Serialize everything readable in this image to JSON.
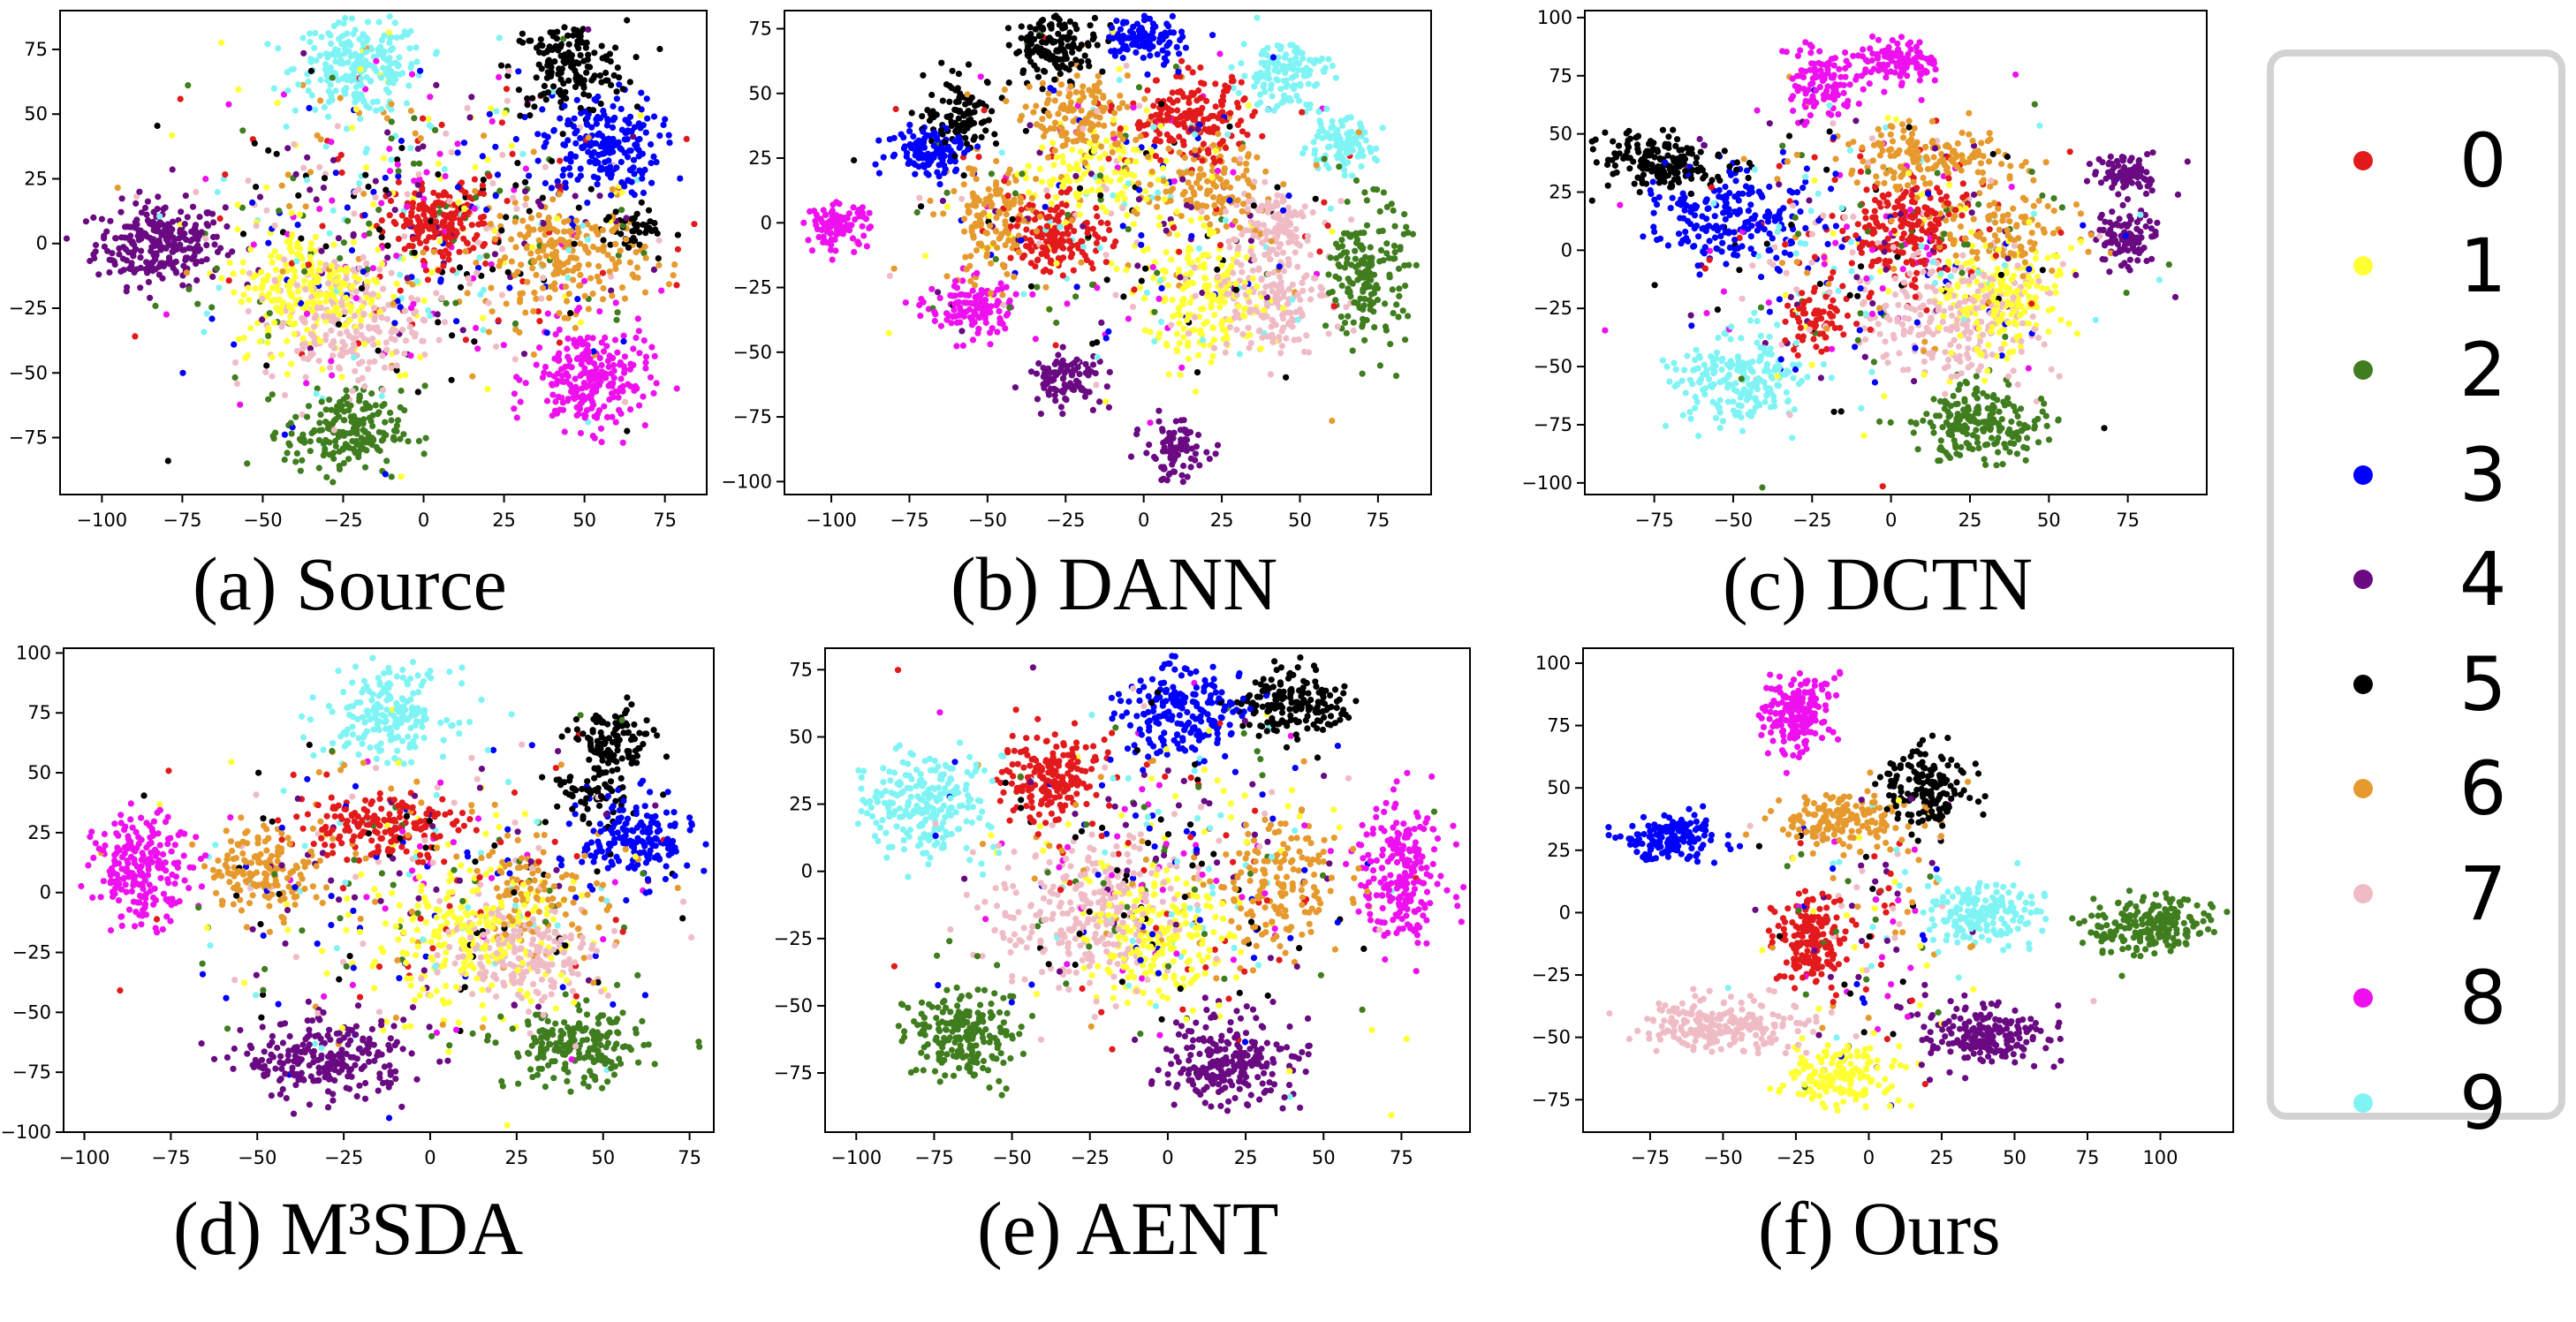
{
  "figure": {
    "legend_title": "",
    "legend": [
      {
        "label": "0",
        "color": "#e31a1c"
      },
      {
        "label": "1",
        "color": "#ffff33"
      },
      {
        "label": "2",
        "color": "#3f7d1f"
      },
      {
        "label": "3",
        "color": "#0000ff"
      },
      {
        "label": "4",
        "color": "#6a0a82"
      },
      {
        "label": "5",
        "color": "#000000"
      },
      {
        "label": "6",
        "color": "#e69a2e"
      },
      {
        "label": "7",
        "color": "#efbcc6"
      },
      {
        "label": "8",
        "color": "#ee10ee"
      },
      {
        "label": "9",
        "color": "#80f4f4"
      }
    ]
  },
  "chart_data": [
    {
      "type": "scatter",
      "title": "(a) Source",
      "xticks": [
        -100,
        -75,
        -50,
        -25,
        0,
        25,
        50,
        75
      ],
      "yticks": [
        -75,
        -50,
        -25,
        0,
        25,
        50,
        75
      ],
      "xlim": [
        -113,
        88
      ],
      "ylim": [
        -97,
        90
      ],
      "clusters": [
        {
          "class": "4",
          "cx": -82,
          "cy": 0,
          "sx": 10,
          "sy": 8,
          "n": 260
        },
        {
          "class": "9",
          "cx": -20,
          "cy": 68,
          "sx": 10,
          "sy": 9,
          "n": 230
        },
        {
          "class": "5",
          "cx": 45,
          "cy": 68,
          "sx": 9,
          "sy": 9,
          "n": 170
        },
        {
          "class": "3",
          "cx": 55,
          "cy": 38,
          "sx": 9,
          "sy": 10,
          "n": 200
        },
        {
          "class": "0",
          "cx": 5,
          "cy": 8,
          "sx": 8,
          "sy": 7,
          "n": 180
        },
        {
          "class": "6",
          "cx": 45,
          "cy": -5,
          "sx": 12,
          "sy": 10,
          "n": 200
        },
        {
          "class": "8",
          "cx": 52,
          "cy": -52,
          "sx": 9,
          "sy": 10,
          "n": 240
        },
        {
          "class": "2",
          "cx": -25,
          "cy": -73,
          "sx": 9,
          "sy": 8,
          "n": 200
        },
        {
          "class": "1",
          "cx": -35,
          "cy": -18,
          "sx": 12,
          "sy": 12,
          "n": 230
        },
        {
          "class": "7",
          "cx": -25,
          "cy": -30,
          "sx": 12,
          "sy": 12,
          "n": 220
        },
        {
          "class": "5",
          "cx": 65,
          "cy": 5,
          "sx": 5,
          "sy": 4,
          "n": 40
        }
      ],
      "noise": {
        "cx": 0,
        "cy": 5,
        "sx": 35,
        "sy": 32,
        "n": 650
      }
    },
    {
      "type": "scatter",
      "title": "(b) DANN",
      "xticks": [
        -100,
        -75,
        -50,
        -25,
        0,
        25,
        50,
        75
      ],
      "yticks": [
        -100,
        -75,
        -50,
        -25,
        0,
        25,
        50,
        75
      ],
      "xlim": [
        -115,
        92
      ],
      "ylim": [
        -105,
        82
      ],
      "clusters": [
        {
          "class": "5",
          "cx": -28,
          "cy": 68,
          "sx": 7,
          "sy": 6,
          "n": 140
        },
        {
          "class": "3",
          "cx": 0,
          "cy": 72,
          "sx": 6,
          "sy": 5,
          "n": 110
        },
        {
          "class": "9",
          "cx": 45,
          "cy": 58,
          "sx": 7,
          "sy": 7,
          "n": 130
        },
        {
          "class": "9",
          "cx": 62,
          "cy": 30,
          "sx": 6,
          "sy": 5,
          "n": 110
        },
        {
          "class": "8",
          "cx": -98,
          "cy": -1,
          "sx": 5,
          "sy": 4,
          "n": 100
        },
        {
          "class": "3",
          "cx": -68,
          "cy": 28,
          "sx": 7,
          "sy": 5,
          "n": 120
        },
        {
          "class": "5",
          "cx": -58,
          "cy": 42,
          "sx": 6,
          "sy": 7,
          "n": 110
        },
        {
          "class": "6",
          "cx": -20,
          "cy": 40,
          "sx": 8,
          "sy": 8,
          "n": 130
        },
        {
          "class": "0",
          "cx": 15,
          "cy": 40,
          "sx": 10,
          "sy": 8,
          "n": 180
        },
        {
          "class": "6",
          "cx": -48,
          "cy": 0,
          "sx": 7,
          "sy": 12,
          "n": 140
        },
        {
          "class": "0",
          "cx": -27,
          "cy": -5,
          "sx": 8,
          "sy": 7,
          "n": 150
        },
        {
          "class": "1",
          "cx": 20,
          "cy": -30,
          "sx": 10,
          "sy": 12,
          "n": 180
        },
        {
          "class": "7",
          "cx": 40,
          "cy": -30,
          "sx": 10,
          "sy": 10,
          "n": 170
        },
        {
          "class": "7",
          "cx": 40,
          "cy": 0,
          "sx": 7,
          "sy": 7,
          "n": 110
        },
        {
          "class": "2",
          "cx": 72,
          "cy": -20,
          "sx": 6,
          "sy": 14,
          "n": 180
        },
        {
          "class": "8",
          "cx": -55,
          "cy": -33,
          "sx": 7,
          "sy": 6,
          "n": 130
        },
        {
          "class": "4",
          "cx": -25,
          "cy": -60,
          "sx": 6,
          "sy": 5,
          "n": 100
        },
        {
          "class": "4",
          "cx": 10,
          "cy": -88,
          "sx": 5,
          "sy": 6,
          "n": 90
        },
        {
          "class": "6",
          "cx": 20,
          "cy": 15,
          "sx": 10,
          "sy": 8,
          "n": 120
        },
        {
          "class": "1",
          "cx": -15,
          "cy": 20,
          "sx": 10,
          "sy": 8,
          "n": 110
        }
      ],
      "noise": {
        "cx": -5,
        "cy": 5,
        "sx": 35,
        "sy": 28,
        "n": 380
      }
    },
    {
      "type": "scatter",
      "title": "(c) DCTN",
      "xticks": [
        -75,
        -50,
        -25,
        0,
        25,
        50,
        75
      ],
      "yticks": [
        -100,
        -75,
        -50,
        -25,
        0,
        25,
        50,
        75,
        100
      ],
      "xlim": [
        -97,
        100
      ],
      "ylim": [
        -105,
        103
      ],
      "clusters": [
        {
          "class": "8",
          "cx": -22,
          "cy": 72,
          "sx": 6,
          "sy": 7,
          "n": 120
        },
        {
          "class": "8",
          "cx": 3,
          "cy": 80,
          "sx": 6,
          "sy": 5,
          "n": 110
        },
        {
          "class": "4",
          "cx": 75,
          "cy": 33,
          "sx": 5,
          "sy": 4,
          "n": 90
        },
        {
          "class": "4",
          "cx": 75,
          "cy": 5,
          "sx": 5,
          "sy": 6,
          "n": 100
        },
        {
          "class": "5",
          "cx": -72,
          "cy": 38,
          "sx": 10,
          "sy": 6,
          "n": 170
        },
        {
          "class": "3",
          "cx": -50,
          "cy": 15,
          "sx": 12,
          "sy": 10,
          "n": 200
        },
        {
          "class": "6",
          "cx": 10,
          "cy": 40,
          "sx": 14,
          "sy": 6,
          "n": 160
        },
        {
          "class": "0",
          "cx": 3,
          "cy": 10,
          "sx": 10,
          "sy": 12,
          "n": 190
        },
        {
          "class": "0",
          "cx": -25,
          "cy": -30,
          "sx": 5,
          "sy": 6,
          "n": 60
        },
        {
          "class": "9",
          "cx": -48,
          "cy": -55,
          "sx": 10,
          "sy": 10,
          "n": 210
        },
        {
          "class": "2",
          "cx": 28,
          "cy": -75,
          "sx": 11,
          "sy": 8,
          "n": 200
        },
        {
          "class": "7",
          "cx": 20,
          "cy": -30,
          "sx": 14,
          "sy": 12,
          "n": 230
        },
        {
          "class": "1",
          "cx": 35,
          "cy": -20,
          "sx": 10,
          "sy": 12,
          "n": 190
        },
        {
          "class": "6",
          "cx": 35,
          "cy": 10,
          "sx": 10,
          "sy": 8,
          "n": 100
        }
      ],
      "noise": {
        "cx": -5,
        "cy": 0,
        "sx": 32,
        "sy": 30,
        "n": 420
      }
    },
    {
      "type": "scatter",
      "title": "(d) M³SDA",
      "xticks": [
        -100,
        -75,
        -50,
        -25,
        0,
        25,
        50,
        75
      ],
      "yticks": [
        -100,
        -75,
        -50,
        -25,
        0,
        25,
        50,
        75,
        100
      ],
      "xlim": [
        -106,
        82
      ],
      "ylim": [
        -100,
        102
      ],
      "clusters": [
        {
          "class": "9",
          "cx": -12,
          "cy": 75,
          "sx": 9,
          "sy": 9,
          "n": 200
        },
        {
          "class": "5",
          "cx": 52,
          "cy": 62,
          "sx": 6,
          "sy": 7,
          "n": 120
        },
        {
          "class": "3",
          "cx": 60,
          "cy": 22,
          "sx": 8,
          "sy": 9,
          "n": 180
        },
        {
          "class": "5",
          "cx": 45,
          "cy": 40,
          "sx": 6,
          "sy": 6,
          "n": 60
        },
        {
          "class": "8",
          "cx": -83,
          "cy": 10,
          "sx": 7,
          "sy": 11,
          "n": 220
        },
        {
          "class": "6",
          "cx": -48,
          "cy": 10,
          "sx": 8,
          "sy": 9,
          "n": 150
        },
        {
          "class": "0",
          "cx": -15,
          "cy": 28,
          "sx": 12,
          "sy": 7,
          "n": 170
        },
        {
          "class": "1",
          "cx": 10,
          "cy": -20,
          "sx": 14,
          "sy": 14,
          "n": 230
        },
        {
          "class": "7",
          "cx": 28,
          "cy": -25,
          "sx": 12,
          "sy": 10,
          "n": 200
        },
        {
          "class": "4",
          "cx": -30,
          "cy": -70,
          "sx": 12,
          "sy": 8,
          "n": 240
        },
        {
          "class": "2",
          "cx": 42,
          "cy": -65,
          "sx": 10,
          "sy": 8,
          "n": 200
        },
        {
          "class": "6",
          "cx": 30,
          "cy": 0,
          "sx": 10,
          "sy": 10,
          "n": 100
        }
      ],
      "noise": {
        "cx": 0,
        "cy": 0,
        "sx": 35,
        "sy": 32,
        "n": 420
      }
    },
    {
      "type": "scatter",
      "title": "(e) AENT",
      "xticks": [
        -100,
        -75,
        -50,
        -25,
        0,
        25,
        50,
        75
      ],
      "yticks": [
        -75,
        -50,
        -25,
        0,
        25,
        50,
        75
      ],
      "xlim": [
        -110,
        97
      ],
      "ylim": [
        -97,
        83
      ],
      "clusters": [
        {
          "class": "3",
          "cx": 5,
          "cy": 60,
          "sx": 10,
          "sy": 9,
          "n": 200
        },
        {
          "class": "5",
          "cx": 40,
          "cy": 62,
          "sx": 9,
          "sy": 6,
          "n": 170
        },
        {
          "class": "9",
          "cx": -78,
          "cy": 25,
          "sx": 10,
          "sy": 9,
          "n": 230
        },
        {
          "class": "0",
          "cx": -38,
          "cy": 35,
          "sx": 8,
          "sy": 8,
          "n": 170
        },
        {
          "class": "8",
          "cx": 75,
          "cy": 0,
          "sx": 7,
          "sy": 14,
          "n": 220
        },
        {
          "class": "6",
          "cx": 35,
          "cy": -5,
          "sx": 10,
          "sy": 12,
          "n": 160
        },
        {
          "class": "7",
          "cx": -25,
          "cy": -15,
          "sx": 14,
          "sy": 14,
          "n": 260
        },
        {
          "class": "1",
          "cx": -5,
          "cy": -25,
          "sx": 12,
          "sy": 12,
          "n": 200
        },
        {
          "class": "2",
          "cx": -65,
          "cy": -60,
          "sx": 9,
          "sy": 9,
          "n": 200
        },
        {
          "class": "4",
          "cx": 20,
          "cy": -70,
          "sx": 11,
          "sy": 8,
          "n": 230
        }
      ],
      "noise": {
        "cx": -5,
        "cy": 0,
        "sx": 30,
        "sy": 30,
        "n": 420
      }
    },
    {
      "type": "scatter",
      "title": "(f) Ours",
      "xticks": [
        -75,
        -50,
        -25,
        0,
        25,
        50,
        75,
        100
      ],
      "yticks": [
        -75,
        -50,
        -25,
        0,
        25,
        50,
        75,
        100
      ],
      "xlim": [
        -98,
        125
      ],
      "ylim": [
        -88,
        106
      ],
      "clusters": [
        {
          "class": "8",
          "cx": -25,
          "cy": 80,
          "sx": 6,
          "sy": 8,
          "n": 180
        },
        {
          "class": "5",
          "cx": 20,
          "cy": 50,
          "sx": 7,
          "sy": 8,
          "n": 160
        },
        {
          "class": "3",
          "cx": -68,
          "cy": 30,
          "sx": 8,
          "sy": 5,
          "n": 160
        },
        {
          "class": "6",
          "cx": -10,
          "cy": 37,
          "sx": 12,
          "sy": 5,
          "n": 160
        },
        {
          "class": "2",
          "cx": 98,
          "cy": -5,
          "sx": 10,
          "sy": 6,
          "n": 200
        },
        {
          "class": "9",
          "cx": 37,
          "cy": 0,
          "sx": 10,
          "sy": 6,
          "n": 180
        },
        {
          "class": "0",
          "cx": -20,
          "cy": -10,
          "sx": 6,
          "sy": 10,
          "n": 170
        },
        {
          "class": "7",
          "cx": -50,
          "cy": -45,
          "sx": 14,
          "sy": 5,
          "n": 220
        },
        {
          "class": "1",
          "cx": -10,
          "cy": -65,
          "sx": 9,
          "sy": 6,
          "n": 160
        },
        {
          "class": "4",
          "cx": 40,
          "cy": -50,
          "sx": 10,
          "sy": 6,
          "n": 200
        }
      ],
      "noise": {
        "cx": 0,
        "cy": -10,
        "sx": 18,
        "sy": 28,
        "n": 180
      }
    }
  ]
}
